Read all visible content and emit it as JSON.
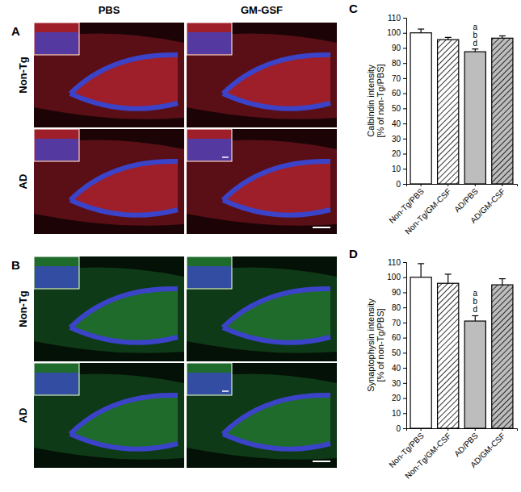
{
  "chart_data": [
    {
      "type": "bar",
      "panel_label": "C",
      "y_label": [
        "Calbindin intensity",
        "[% of non-Tg/PBS]"
      ],
      "categories": [
        "Non-Tg/PBS",
        "Non-Tg/GM-CSF",
        "AD/PBS",
        "AD/GM-CSF"
      ],
      "values": [
        100,
        95.5,
        87.5,
        96.5
      ],
      "errors": [
        2.5,
        1.5,
        1.8,
        1.5
      ],
      "colors": [
        "#ffffff",
        "#ffffff",
        "#bdbdbd",
        "#bdbdbd"
      ],
      "ylim": [
        0,
        110
      ],
      "yticks": [
        0,
        10,
        20,
        30,
        40,
        50,
        60,
        70,
        80,
        90,
        100,
        110
      ],
      "annotations": [
        {
          "x": "AD/PBS",
          "lines": [
            "a",
            "b",
            "d"
          ]
        }
      ]
    },
    {
      "type": "bar",
      "panel_label": "D",
      "y_label": [
        "Synaptophysin intensity",
        "[% of non-Tg/PBS]"
      ],
      "categories": [
        "Non-Tg/PBS",
        "Non-Tg/GM-CSF",
        "AD/PBS",
        "AD/GM-CSF"
      ],
      "values": [
        100,
        96,
        71,
        95
      ],
      "errors": [
        9,
        6,
        3.5,
        4
      ],
      "colors": [
        "#ffffff",
        "#ffffff",
        "#bdbdbd",
        "#bdbdbd"
      ],
      "ylim": [
        0,
        110
      ],
      "yticks": [
        0,
        10,
        20,
        30,
        40,
        50,
        60,
        70,
        80,
        90,
        100,
        110
      ],
      "annotations": [
        {
          "x": "AD/PBS",
          "lines": [
            "a",
            "b",
            "d"
          ]
        }
      ]
    }
  ],
  "images": {
    "panel_labels": [
      "A",
      "B"
    ],
    "columns": [
      "PBS",
      "GM-GSF"
    ],
    "rows": [
      "Non-Tg",
      "AD"
    ]
  }
}
